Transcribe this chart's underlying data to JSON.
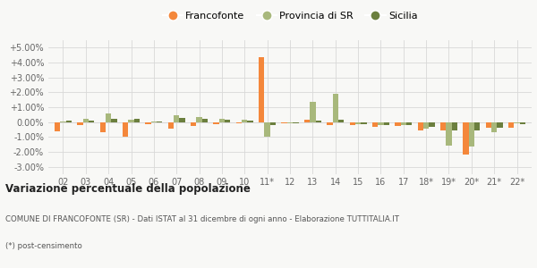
{
  "categories": [
    "02",
    "03",
    "04",
    "05",
    "06",
    "07",
    "08",
    "09",
    "10",
    "11*",
    "12",
    "13",
    "14",
    "15",
    "16",
    "17",
    "18*",
    "19*",
    "20*",
    "21*",
    "22*"
  ],
  "francofonte": [
    -0.006,
    -0.002,
    -0.0065,
    -0.01,
    -0.0015,
    -0.0045,
    -0.0025,
    -0.0015,
    -0.001,
    0.0435,
    -0.0005,
    0.0015,
    -0.002,
    -0.002,
    -0.003,
    -0.0025,
    -0.0055,
    -0.0055,
    -0.022,
    -0.004,
    -0.0035
  ],
  "provincia_sr": [
    0.0005,
    0.0025,
    0.006,
    0.0015,
    0.0005,
    0.0045,
    0.0035,
    0.0025,
    0.0015,
    -0.0095,
    -0.001,
    0.0135,
    0.019,
    -0.0015,
    -0.002,
    -0.002,
    -0.0045,
    -0.0155,
    -0.0165,
    -0.0065,
    -0.001
  ],
  "sicilia": [
    0.001,
    0.001,
    0.002,
    0.002,
    0.0005,
    0.003,
    0.002,
    0.0015,
    0.001,
    -0.002,
    -0.0005,
    0.001,
    0.0015,
    -0.0015,
    -0.002,
    -0.002,
    -0.003,
    -0.0055,
    -0.0055,
    -0.0035,
    -0.0015
  ],
  "color_francofonte": "#f4873b",
  "color_provincia": "#a8b87c",
  "color_sicilia": "#6b7f3e",
  "ylim_min": -0.035,
  "ylim_max": 0.055,
  "yticks": [
    -0.03,
    -0.02,
    -0.01,
    0.0,
    0.01,
    0.02,
    0.03,
    0.04,
    0.05
  ],
  "ytick_labels": [
    "-3.00%",
    "-2.00%",
    "-1.00%",
    "0.00%",
    "+1.00%",
    "+2.00%",
    "+3.00%",
    "+4.00%",
    "+5.00%"
  ],
  "title": "Variazione percentuale della popolazione",
  "subtitle": "COMUNE DI FRANCOFONTE (SR) - Dati ISTAT al 31 dicembre di ogni anno - Elaborazione TUTTITALIA.IT",
  "footnote": "(*) post-censimento",
  "legend_labels": [
    "Francofonte",
    "Provincia di SR",
    "Sicilia"
  ],
  "bg_color": "#f8f8f6",
  "grid_color": "#d8d8d8"
}
